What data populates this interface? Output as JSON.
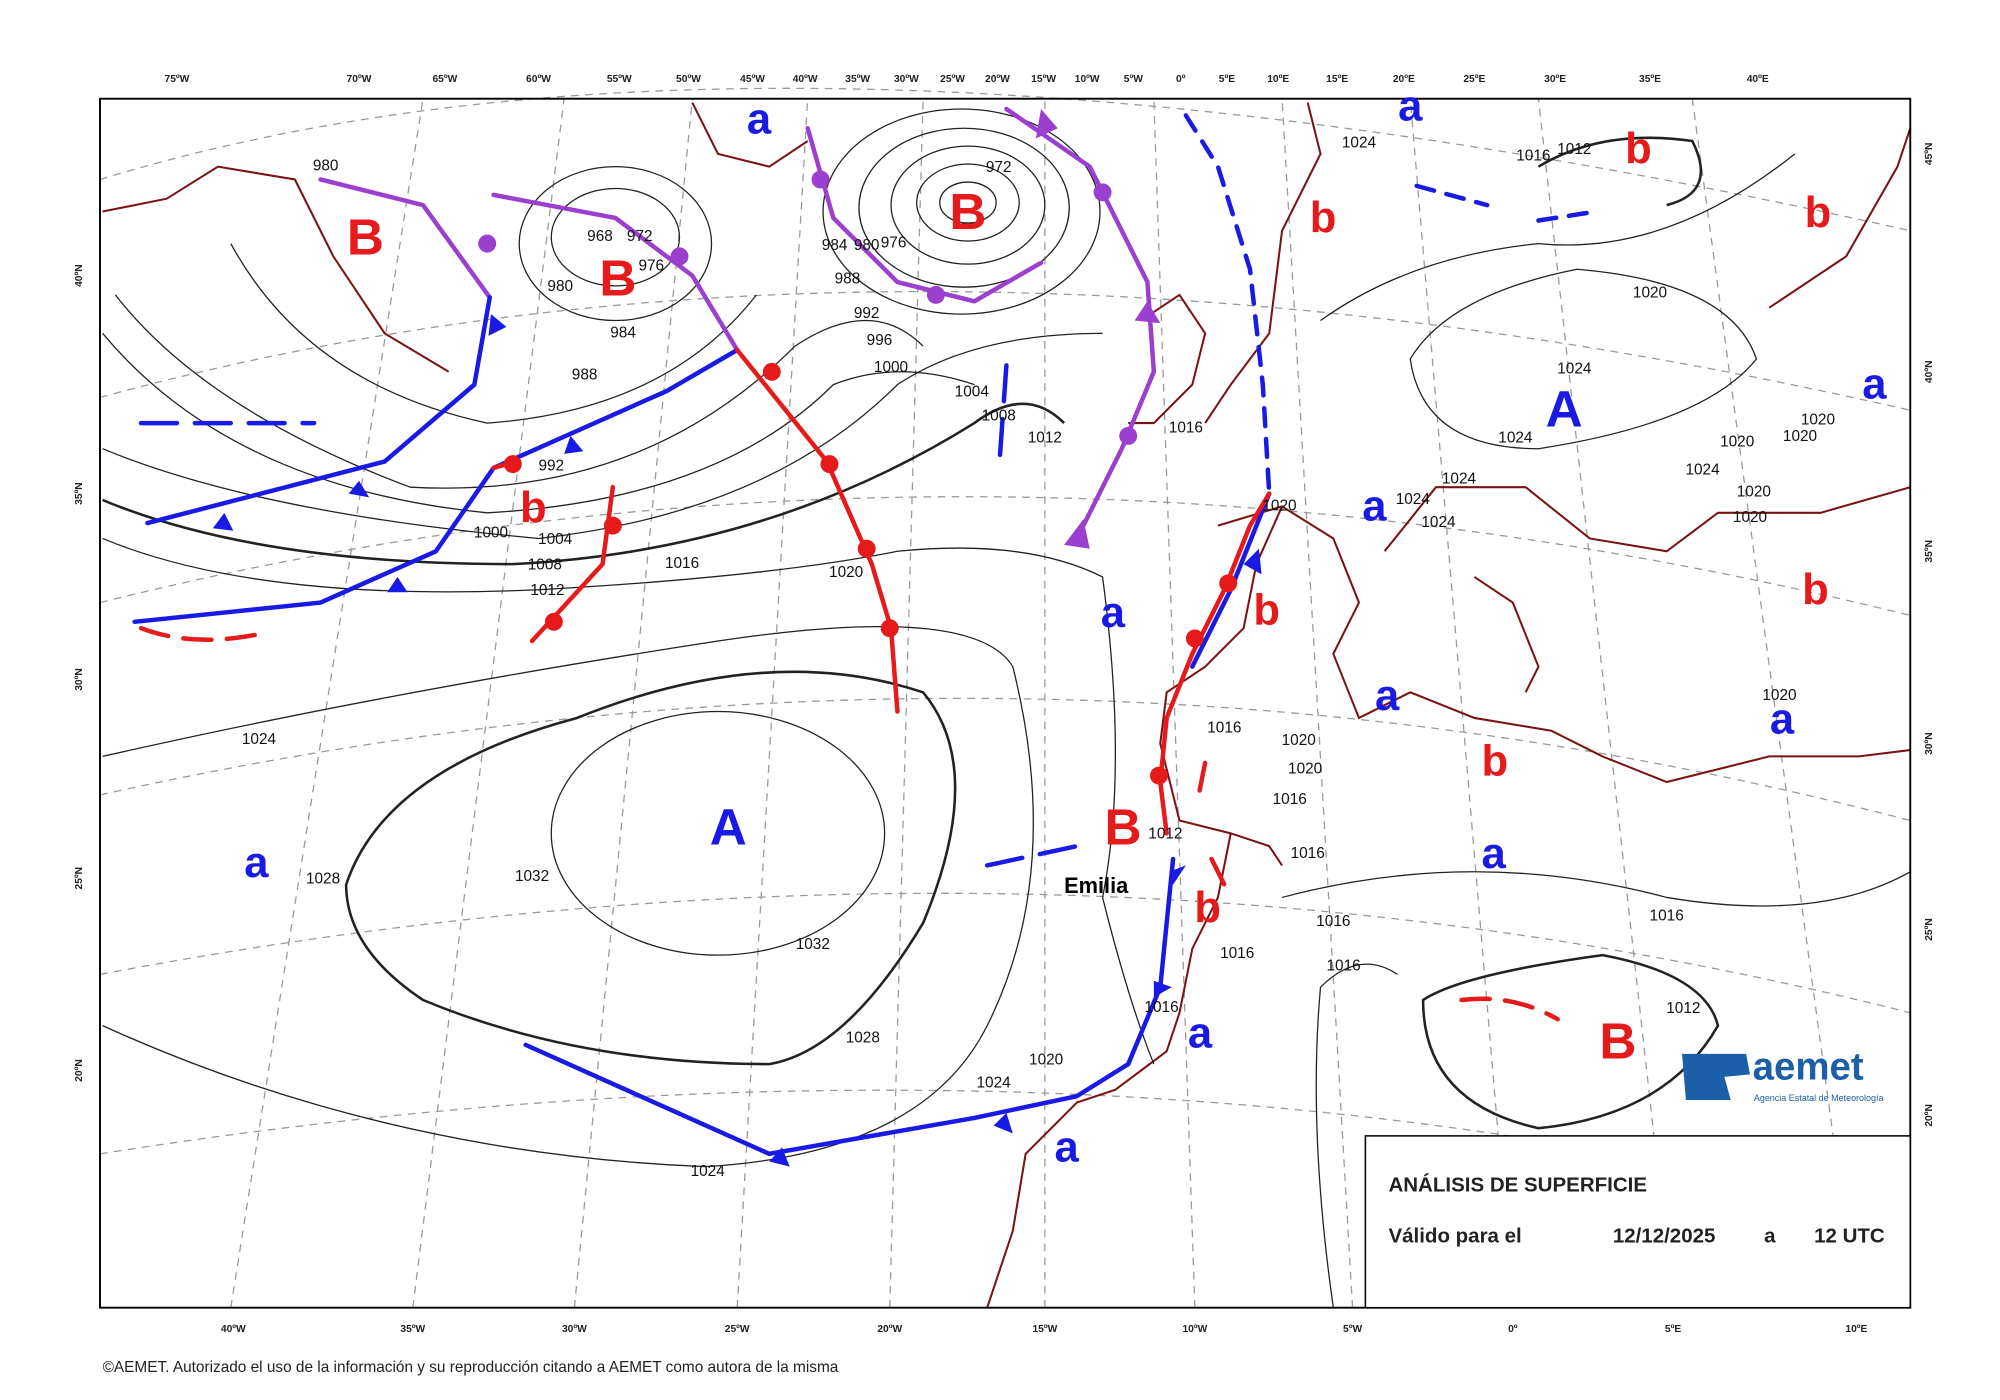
{
  "map": {
    "longitudes_top": [
      "75ºW",
      "70ºW",
      "65ºW",
      "60ºW",
      "55ºW",
      "50ºW",
      "45ºW",
      "40ºW",
      "35ºW",
      "30ºW",
      "25ºW",
      "20ºW",
      "15ºW",
      "10ºW",
      "5ºW",
      "0º",
      "5ºE",
      "10ºE",
      "15ºE",
      "20ºE",
      "25ºE",
      "30ºE",
      "35ºE",
      "40ºE"
    ],
    "longitudes_bottom": [
      "40ºW",
      "35ºW",
      "30ºW",
      "25ºW",
      "20ºW",
      "15ºW",
      "10ºW",
      "5ºW",
      "0º",
      "5ºE",
      "10ºE"
    ],
    "latitudes_left": [
      "40ºN",
      "35ºN",
      "30ºN",
      "25ºN",
      "20ºN"
    ],
    "latitudes_right": [
      "45ºN",
      "40ºN",
      "35ºN",
      "30ºN",
      "25ºN",
      "20ºN"
    ],
    "pressure_systems": [
      "A",
      "A",
      "B",
      "B",
      "B",
      "B",
      "B",
      "a",
      "a",
      "a",
      "a",
      "a",
      "a",
      "a",
      "a",
      "a",
      "a",
      "a",
      "b",
      "b",
      "b",
      "b",
      "b",
      "b",
      "b",
      "b"
    ],
    "isobar_labels": [
      980,
      980,
      968,
      972,
      976,
      984,
      988,
      992,
      1000,
      1004,
      1008,
      1012,
      1016,
      1020,
      996,
      1000,
      992,
      988,
      984,
      980,
      976,
      972,
      1004,
      1008,
      1012,
      1016,
      1024,
      1028,
      1032,
      1032,
      1028,
      1024,
      1020,
      1024,
      1016,
      1016,
      1016,
      1016,
      1016,
      1012,
      1012,
      1016,
      1020,
      1020,
      1016,
      1016,
      1020,
      1024,
      1024,
      1024,
      1024,
      1024,
      1024,
      1020,
      1020,
      1020,
      1020,
      1020,
      1020,
      1020,
      1024,
      1016,
      1012
    ],
    "storm_name": "Emilia"
  },
  "info_box": {
    "title": "ANÁLISIS DE SUPERFICIE",
    "valid_label": "Válido para el",
    "date": "12/12/2025",
    "at": "a",
    "time": "12 UTC"
  },
  "footer": {
    "copyright": "©AEMET. Autorizado el uso de la información y su reproducción citando a AEMET como autora de la misma"
  },
  "logo": {
    "name": "aemet",
    "agency": "Agencia Estatal de Meteorología"
  }
}
